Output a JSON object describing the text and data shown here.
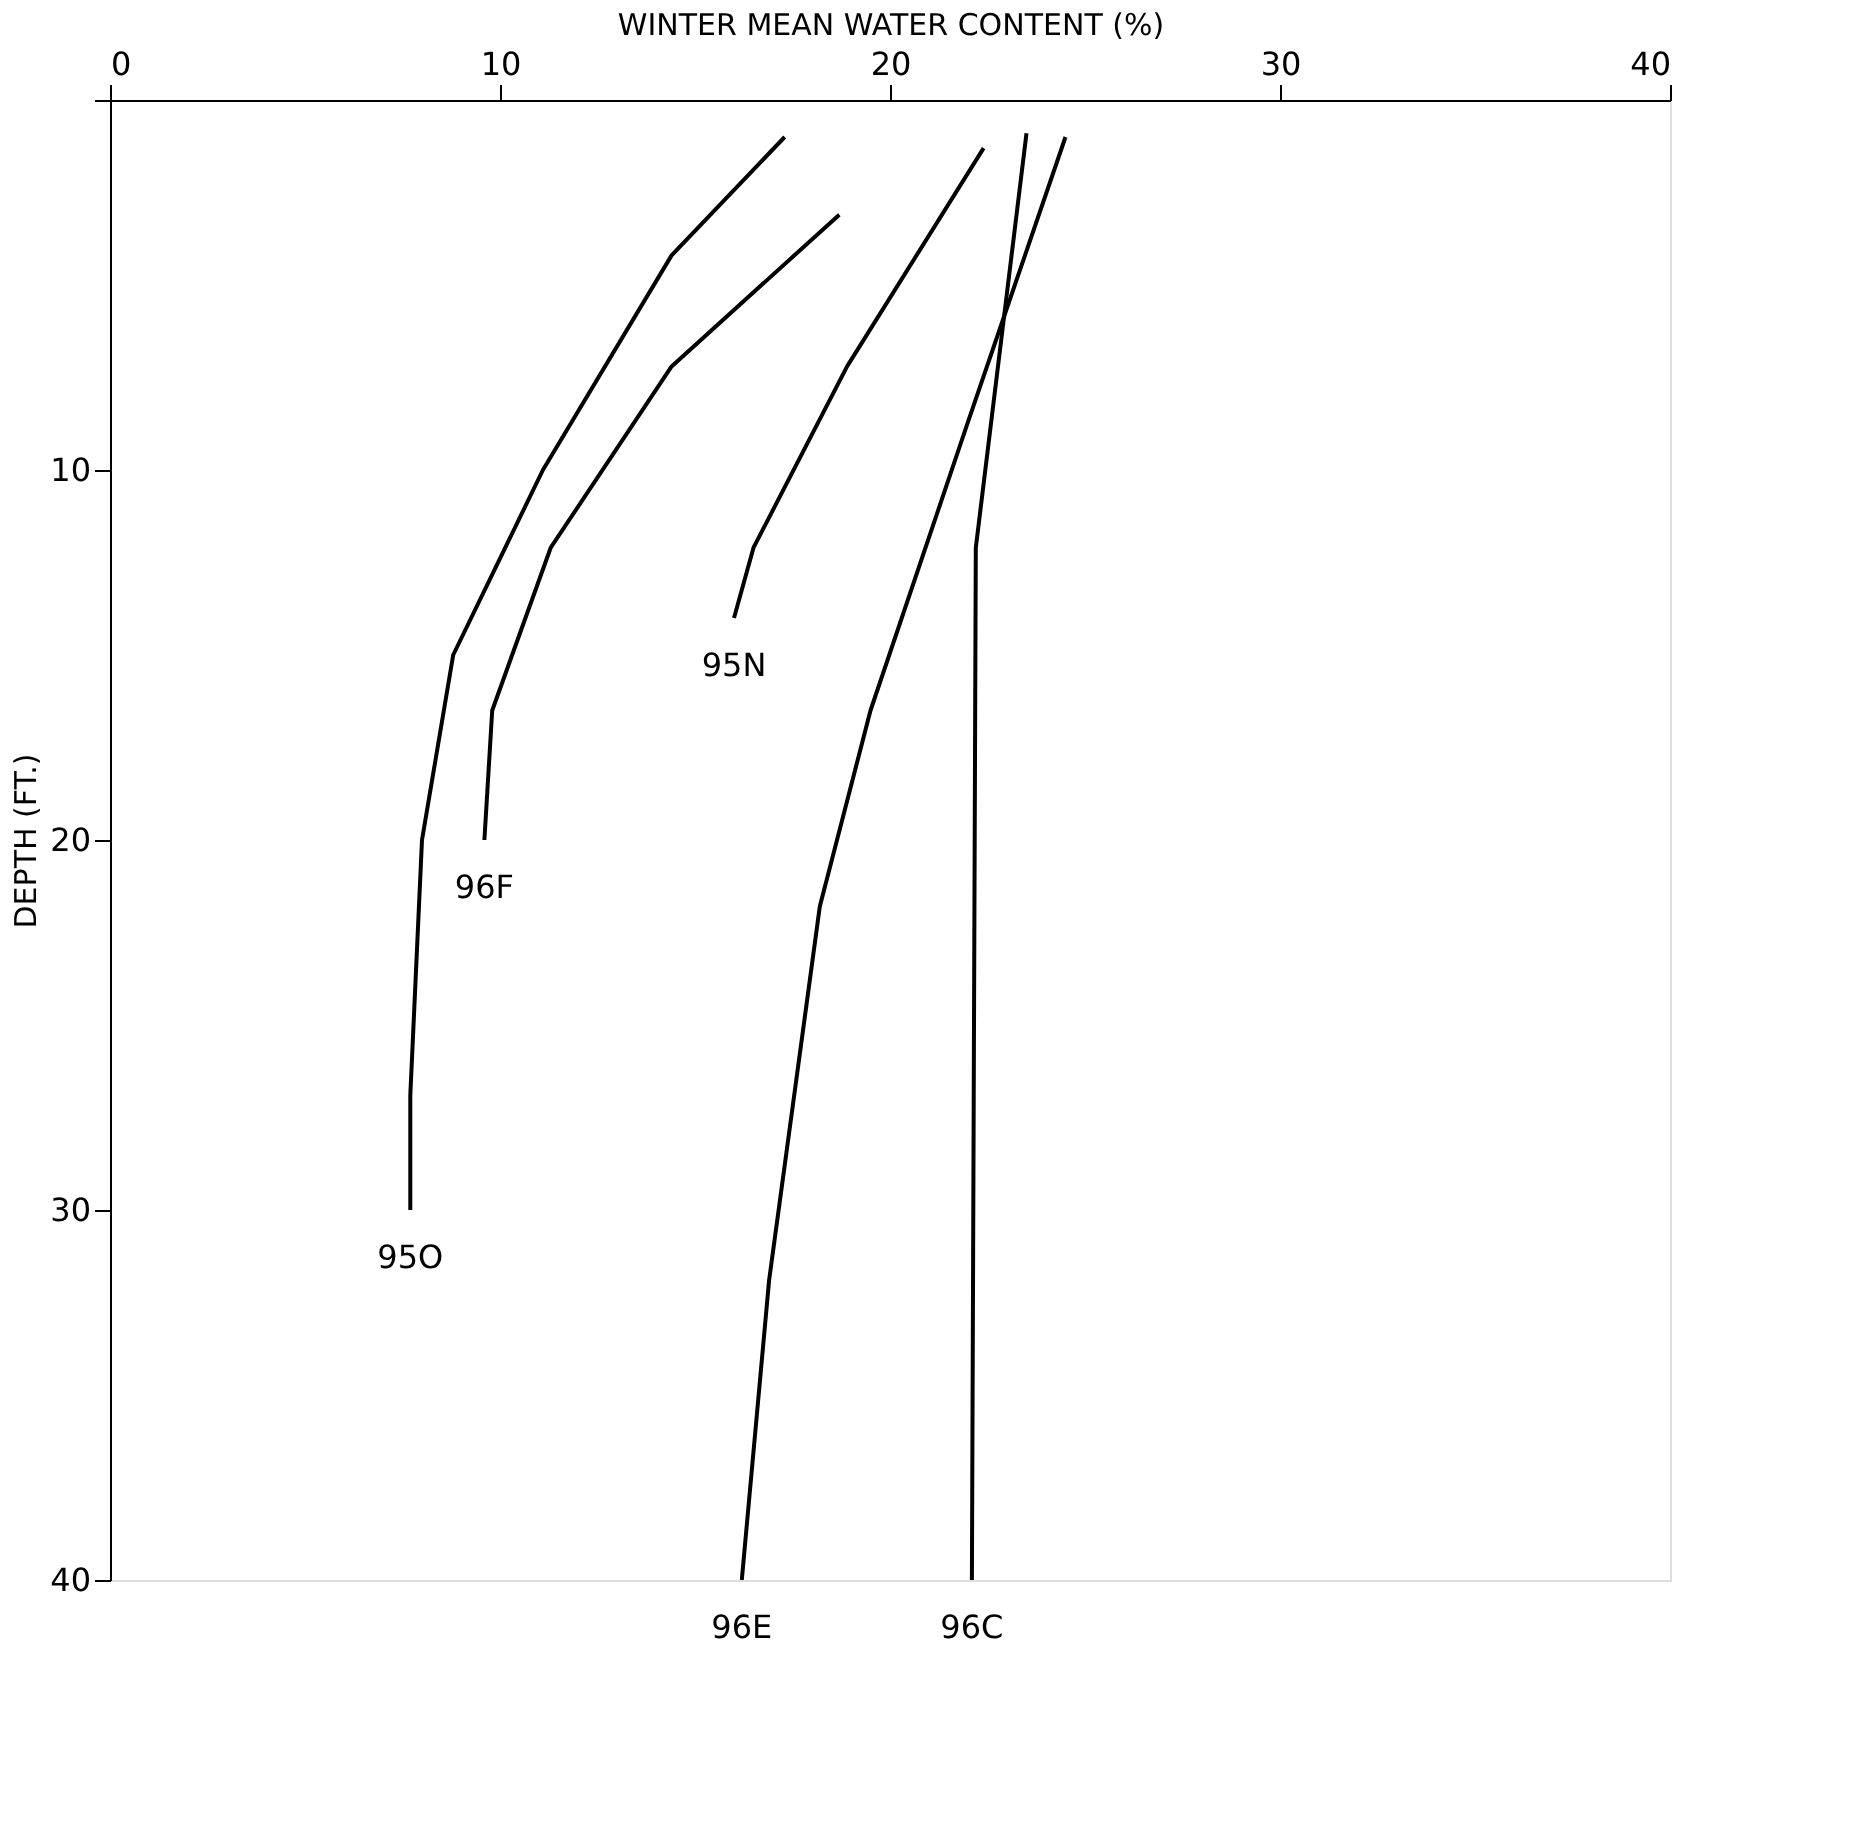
{
  "chart_data": {
    "type": "line",
    "xlabel": "WINTER MEAN WATER CONTENT (%)",
    "ylabel": "DEPTH (FT.)",
    "xlim": [
      0,
      40
    ],
    "xticks": [
      0,
      10,
      20,
      30,
      40
    ],
    "ylim": [
      40,
      0
    ],
    "yticks": [
      {
        "value": 0,
        "label": null
      },
      10,
      20,
      30,
      40
    ],
    "grid": false,
    "legend": false,
    "marker": "none",
    "line_style": "solid",
    "series": [
      {
        "name": "95O",
        "color": "#000000",
        "x": [
          17.3,
          14.4,
          11.1,
          8.8,
          8.0,
          7.7,
          7.7
        ],
        "values": [
          1,
          4.2,
          10,
          15,
          20,
          26.9,
          30
        ]
      },
      {
        "name": "96F",
        "color": "#000000",
        "x": [
          18.7,
          14.4,
          11.3,
          9.8,
          9.6
        ],
        "values": [
          3.1,
          7.2,
          12.1,
          16.5,
          20
        ]
      },
      {
        "name": "95N",
        "color": "#000000",
        "x": [
          22.4,
          18.9,
          16.5,
          16.0
        ],
        "values": [
          1.3,
          7.2,
          12.1,
          14
        ]
      },
      {
        "name": "96E",
        "color": "#000000",
        "x": [
          24.5,
          22.0,
          19.5,
          18.2,
          16.9,
          16.2
        ],
        "values": [
          1,
          8.7,
          16.5,
          21.8,
          31.9,
          40
        ]
      },
      {
        "name": "96C",
        "color": "#000000",
        "x": [
          23.5,
          22.2,
          22.1
        ],
        "values": [
          0.9,
          12.1,
          40
        ]
      }
    ]
  }
}
